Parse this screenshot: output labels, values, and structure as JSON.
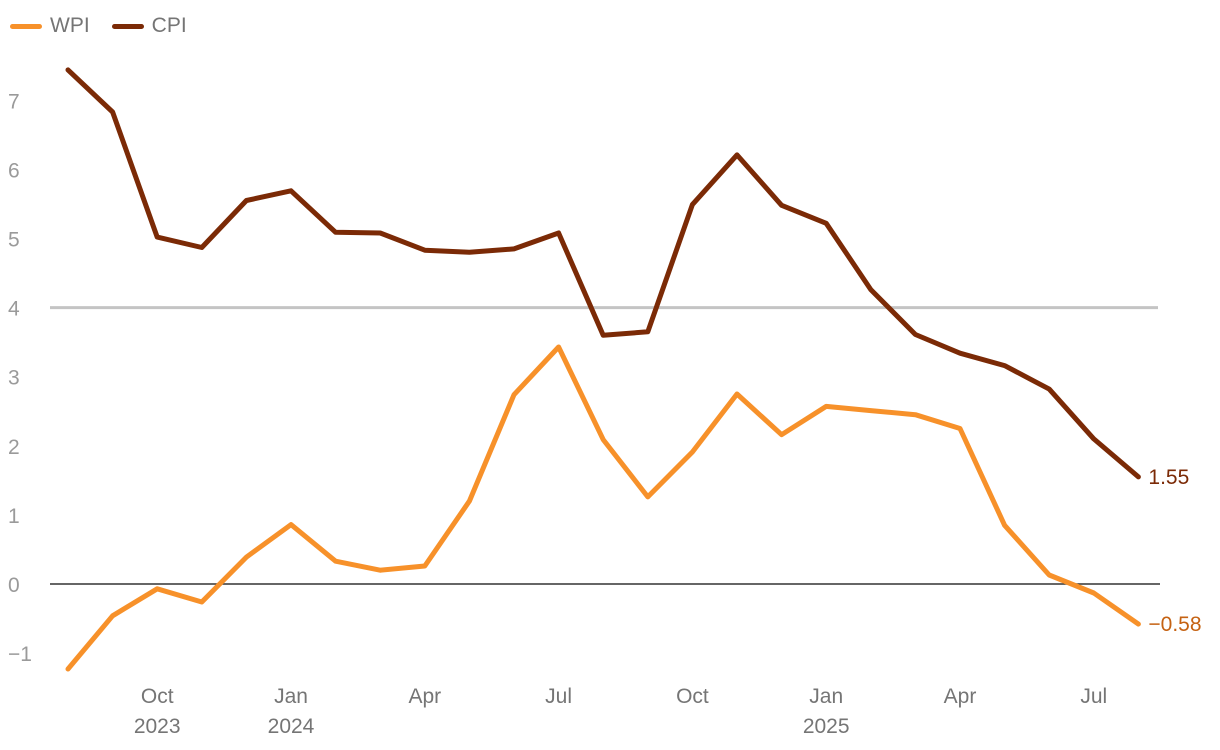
{
  "colors": {
    "wpi": "#f7912a",
    "cpi": "#7b2a06",
    "wpi_label": "#c56212",
    "reference": "#c4c4c4",
    "zero": "#333333"
  },
  "legend": [
    {
      "label": "WPI",
      "color": "#f7912a"
    },
    {
      "label": "CPI",
      "color": "#7b2a06"
    }
  ],
  "chart_data": {
    "type": "line",
    "x": [
      "2023-08",
      "2023-09",
      "2023-10",
      "2023-11",
      "2023-12",
      "2024-01",
      "2024-02",
      "2024-03",
      "2024-04",
      "2024-05",
      "2024-06",
      "2024-07",
      "2024-08",
      "2024-09",
      "2024-10",
      "2024-11",
      "2024-12",
      "2025-01",
      "2025-02",
      "2025-03",
      "2025-04",
      "2025-05",
      "2025-06",
      "2025-07",
      "2025-08"
    ],
    "series": [
      {
        "name": "WPI",
        "color": "#f7912a",
        "values": [
          -1.23,
          -0.46,
          -0.07,
          -0.26,
          0.39,
          0.86,
          0.33,
          0.2,
          0.26,
          1.2,
          2.74,
          3.43,
          2.09,
          1.26,
          1.91,
          2.75,
          2.16,
          2.57,
          2.51,
          2.45,
          2.25,
          0.85,
          0.13,
          -0.13,
          -0.58
        ]
      },
      {
        "name": "CPI",
        "color": "#7b2a06",
        "values": [
          7.44,
          6.83,
          5.02,
          4.87,
          5.55,
          5.69,
          5.09,
          5.08,
          4.83,
          4.8,
          4.85,
          5.08,
          3.6,
          3.65,
          5.49,
          6.21,
          5.48,
          5.22,
          4.26,
          3.61,
          3.34,
          3.16,
          2.82,
          2.1,
          1.55
        ]
      }
    ],
    "yticks": [
      "7",
      "6",
      "5",
      "4",
      "3",
      "2",
      "1",
      "0",
      "−1"
    ],
    "ylim": [
      -1.4,
      7.8
    ],
    "reference_line": 4,
    "xtick_labels": [
      {
        "month": "Oct",
        "year": "2023",
        "index": 2
      },
      {
        "month": "Jan",
        "year": "2024",
        "index": 5
      },
      {
        "month": "Apr",
        "year": "",
        "index": 8
      },
      {
        "month": "Jul",
        "year": "",
        "index": 11
      },
      {
        "month": "Oct",
        "year": "",
        "index": 14
      },
      {
        "month": "Jan",
        "year": "2025",
        "index": 17
      },
      {
        "month": "Apr",
        "year": "",
        "index": 20
      },
      {
        "month": "Jul",
        "year": "",
        "index": 23
      }
    ],
    "end_labels": [
      {
        "series": "CPI",
        "text": "1.55",
        "color": "#7b2a06"
      },
      {
        "series": "WPI",
        "text": "−0.58",
        "color": "#c56212"
      }
    ]
  }
}
